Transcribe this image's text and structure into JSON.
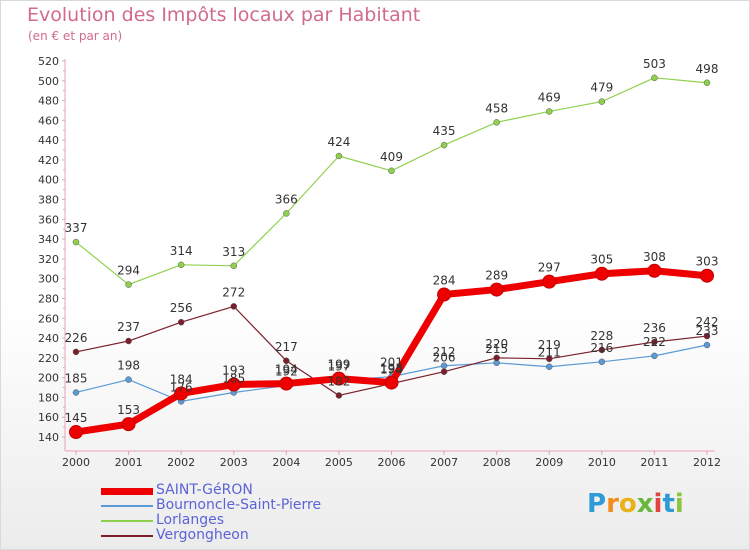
{
  "title": "Evolution des Impôts locaux par Habitant",
  "subtitle": "(en € et par an)",
  "brand": {
    "letters": [
      "P",
      "r",
      "o",
      "x",
      "i",
      "t",
      "i"
    ],
    "colors": [
      "#2f9bd6",
      "#f28c1c",
      "#e8b21a",
      "#66b93b",
      "#e0443c",
      "#2f9bd6",
      "#8bc43f"
    ]
  },
  "chart_data": {
    "type": "line",
    "categories": [
      "2000",
      "2001",
      "2002",
      "2003",
      "2004",
      "2005",
      "2006",
      "2007",
      "2008",
      "2009",
      "2010",
      "2011",
      "2012"
    ],
    "ylim": [
      140,
      520
    ],
    "y_ticks": [
      140,
      160,
      180,
      200,
      220,
      240,
      260,
      280,
      300,
      320,
      340,
      360,
      380,
      400,
      420,
      440,
      460,
      480,
      500,
      520
    ],
    "grid": false,
    "legend_position": "bottom-left",
    "series": [
      {
        "name": "SAINT-GéRON",
        "color": "#ee0000",
        "emphasis": true,
        "values": [
          145,
          153,
          184,
          193,
          194,
          199,
          195,
          284,
          289,
          297,
          305,
          308,
          303
        ]
      },
      {
        "name": "Bournoncle-Saint-Pierre",
        "color": "#5b9bd5",
        "emphasis": false,
        "values": [
          185,
          198,
          176,
          185,
          192,
          197,
          201,
          212,
          215,
          211,
          216,
          222,
          233
        ]
      },
      {
        "name": "Lorlanges",
        "color": "#8fd14f",
        "emphasis": false,
        "values": [
          337,
          294,
          314,
          313,
          366,
          424,
          409,
          435,
          458,
          469,
          479,
          503,
          498
        ]
      },
      {
        "name": "Vergongheon",
        "color": "#7a1f2b",
        "emphasis": false,
        "values": [
          226,
          237,
          256,
          272,
          217,
          182,
          194,
          206,
          220,
          219,
          228,
          236,
          242
        ]
      }
    ]
  }
}
